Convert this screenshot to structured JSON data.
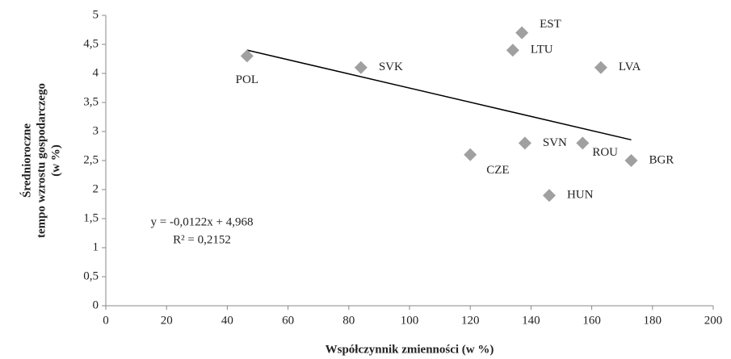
{
  "chart_data": {
    "type": "scatter",
    "x_label": "Współczynnik zmienności (w %)",
    "y_label": [
      "Średnioroczne",
      "tempo wzrostu gospodarczego",
      "(w %)"
    ],
    "labels": [
      "POL",
      "SVK",
      "EST",
      "LTU",
      "LVA",
      "SVN",
      "ROU",
      "CZE",
      "BGR",
      "HUN"
    ],
    "x": [
      46.5,
      84,
      137,
      134,
      163,
      138,
      157,
      120,
      173,
      146
    ],
    "values": [
      4.3,
      4.1,
      4.7,
      4.4,
      4.1,
      2.8,
      2.8,
      2.6,
      2.5,
      1.9
    ],
    "color": "#a0a0a0",
    "trend_line": {
      "x": [
        46.5,
        173
      ],
      "y": [
        4.401,
        2.857
      ],
      "color": "#000000"
    },
    "annotations": [
      "y = -0,0122x + 4,968",
      "R² = 0,2152"
    ],
    "xlim": [
      0,
      200
    ],
    "xticks": [
      0,
      20,
      40,
      60,
      80,
      100,
      120,
      140,
      160,
      180,
      200
    ],
    "ylim": [
      0,
      5
    ],
    "yticks": [
      0,
      {
        "value": 0.5,
        "label": "0,5"
      },
      1,
      {
        "value": 1.5,
        "label": "1,5"
      },
      2,
      {
        "value": 2.5,
        "label": "2,5"
      },
      3,
      {
        "value": 3.5,
        "label": "3,5"
      },
      4,
      {
        "value": 4.5,
        "label": "4,5"
      },
      5
    ],
    "grid": false
  }
}
